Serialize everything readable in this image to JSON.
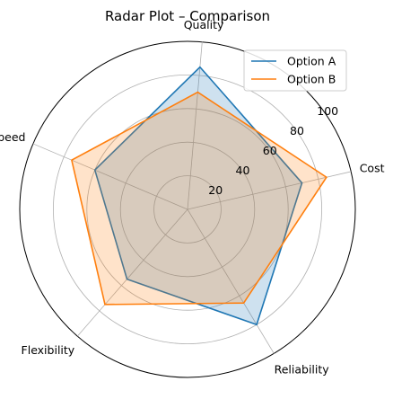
{
  "chart_data": {
    "type": "radar",
    "title": "Radar Plot – Comparison",
    "categories": [
      "Cost",
      "Quality",
      "Speed",
      "Flexibility",
      "Reliability"
    ],
    "rlim": [
      0,
      100
    ],
    "rticks": [
      20,
      40,
      60,
      80,
      100
    ],
    "rtick_labels": [
      "20",
      "40",
      "60",
      "80",
      "100"
    ],
    "grid": true,
    "legend_position": "top-right",
    "series": [
      {
        "name": "Option A",
        "values": [
          70,
          85,
          60,
          55,
          80
        ],
        "color": "#1f77b4"
      },
      {
        "name": "Option B",
        "values": [
          85,
          70,
          75,
          75,
          65
        ],
        "color": "#ff7f0e"
      }
    ]
  }
}
